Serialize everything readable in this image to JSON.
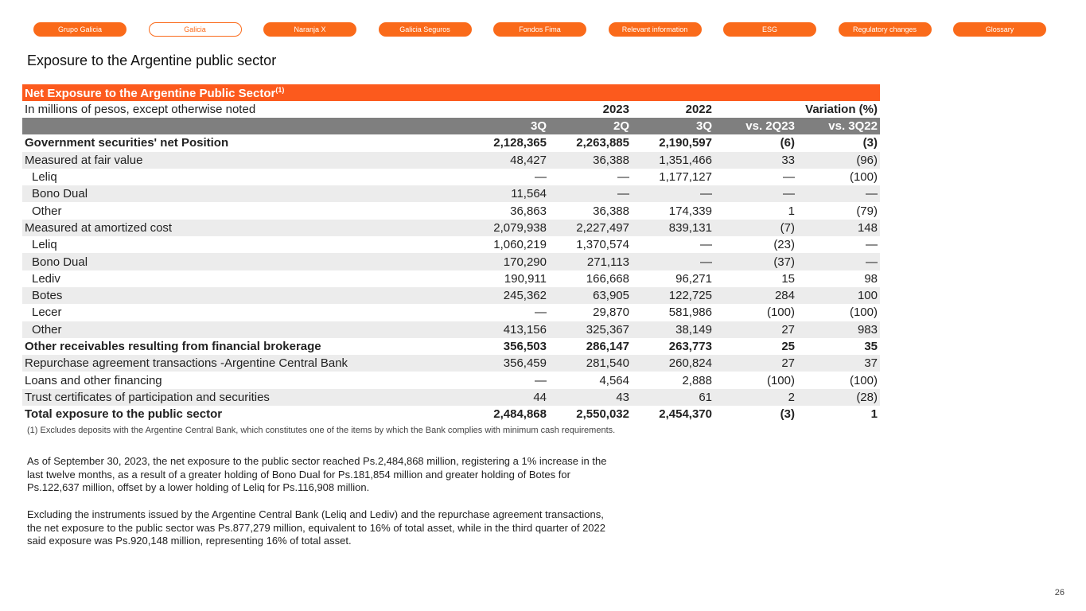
{
  "nav": [
    "Grupo Galicia",
    "Galicia",
    "Naranja X",
    "Galicia Seguros",
    "Fondos Fima",
    "Relevant information",
    "ESG",
    "Regulatory changes",
    "Glossary"
  ],
  "nav_active": 1,
  "page_title": "Exposure to the Argentine public sector",
  "table": {
    "title": "Net Exposure to the Argentine Public Sector",
    "title_sup": "(1)",
    "units": "In millions of pesos, except otherwise noted",
    "year_2023": "2023",
    "year_2022": "2022",
    "variation": "Variation (%)",
    "cols": [
      "3Q",
      "2Q",
      "3Q",
      "vs. 2Q23",
      "vs. 3Q22"
    ],
    "rows": [
      {
        "label": "Government securities' net Position",
        "bold": true,
        "indent": false,
        "v": [
          "2,128,365",
          "2,263,885",
          "2,190,597",
          "(6)",
          "(3)"
        ]
      },
      {
        "label": "Measured at fair value",
        "bold": false,
        "indent": false,
        "v": [
          "48,427",
          "36,388",
          "1,351,466",
          "33",
          "(96)"
        ]
      },
      {
        "label": "Leliq",
        "bold": false,
        "indent": true,
        "v": [
          "—",
          "—",
          "1,177,127",
          "—",
          "(100)"
        ]
      },
      {
        "label": "Bono Dual",
        "bold": false,
        "indent": true,
        "v": [
          "11,564",
          "—",
          "—",
          "—",
          "—"
        ]
      },
      {
        "label": "Other",
        "bold": false,
        "indent": true,
        "v": [
          "36,863",
          "36,388",
          "174,339",
          "1",
          "(79)"
        ]
      },
      {
        "label": "Measured at amortized cost",
        "bold": false,
        "indent": false,
        "v": [
          "2,079,938",
          "2,227,497",
          "839,131",
          "(7)",
          "148"
        ]
      },
      {
        "label": "Leliq",
        "bold": false,
        "indent": true,
        "v": [
          "1,060,219",
          "1,370,574",
          "—",
          "(23)",
          "—"
        ]
      },
      {
        "label": "Bono Dual",
        "bold": false,
        "indent": true,
        "v": [
          "170,290",
          "271,113",
          "—",
          "(37)",
          "—"
        ]
      },
      {
        "label": "Lediv",
        "bold": false,
        "indent": true,
        "v": [
          "190,911",
          "166,668",
          "96,271",
          "15",
          "98"
        ]
      },
      {
        "label": "Botes",
        "bold": false,
        "indent": true,
        "v": [
          "245,362",
          "63,905",
          "122,725",
          "284",
          "100"
        ]
      },
      {
        "label": "Lecer",
        "bold": false,
        "indent": true,
        "v": [
          "—",
          "29,870",
          "581,986",
          "(100)",
          "(100)"
        ]
      },
      {
        "label": "Other",
        "bold": false,
        "indent": true,
        "v": [
          "413,156",
          "325,367",
          "38,149",
          "27",
          "983"
        ]
      },
      {
        "label": "Other receivables resulting from financial brokerage",
        "bold": true,
        "indent": false,
        "v": [
          "356,503",
          "286,147",
          "263,773",
          "25",
          "35"
        ]
      },
      {
        "label": "Repurchase agreement transactions -Argentine Central Bank",
        "bold": false,
        "indent": false,
        "v": [
          "356,459",
          "281,540",
          "260,824",
          "27",
          "37"
        ]
      },
      {
        "label": "Loans and other financing",
        "bold": false,
        "indent": false,
        "v": [
          "—",
          "4,564",
          "2,888",
          "(100)",
          "(100)"
        ]
      },
      {
        "label": "Trust certificates of participation and securities",
        "bold": false,
        "indent": false,
        "v": [
          "44",
          "43",
          "61",
          "2",
          "(28)"
        ]
      },
      {
        "label": "Total exposure to the public sector",
        "bold": true,
        "indent": false,
        "v": [
          "2,484,868",
          "2,550,032",
          "2,454,370",
          "(3)",
          "1"
        ]
      }
    ]
  },
  "footnote": "(1) Excludes deposits with the Argentine Central Bank, which constitutes one of the items by which the Bank complies with minimum cash requirements.",
  "paragraph1": "As of September 30, 2023, the net exposure to the public sector reached Ps.2,484,868 million, registering a 1% increase in the last twelve months, as a result of a greater holding of Bono Dual for Ps.181,854 million and greater holding of Botes for Ps.122,637 million, offset by a lower holding of Leliq for Ps.116,908 million.",
  "paragraph2": "Excluding the instruments issued by the Argentine Central Bank (Leliq and Lediv) and the repurchase agreement transactions, the net exposure to the public sector was Ps.877,279 million, equivalent to 16% of total asset, while in the third quarter of 2022 said exposure was Ps.920,148 million, representing 16% of total asset.",
  "page_number": "26"
}
